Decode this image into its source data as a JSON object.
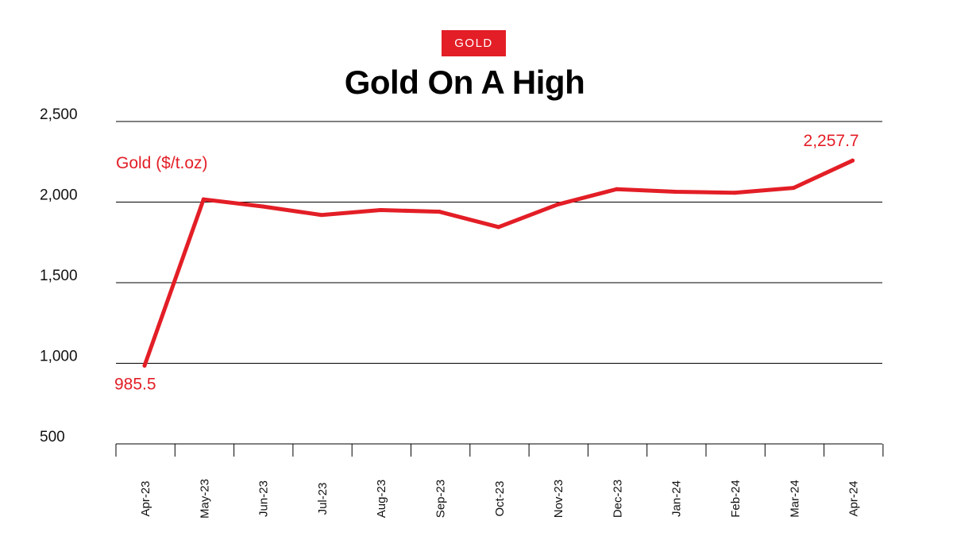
{
  "header": {
    "tag": "GOLD",
    "title": "Gold On A High"
  },
  "colors": {
    "accent": "#e31e26",
    "grid": "#000000",
    "text": "#111111"
  },
  "chart_data": {
    "type": "line",
    "title": "Gold On A High",
    "xlabel": "",
    "ylabel": "",
    "ylim": [
      500,
      2500
    ],
    "yticks": [
      500,
      1000,
      1500,
      2000,
      2500
    ],
    "ytick_labels": [
      "500",
      "1,000",
      "1,500",
      "2,000",
      "2,500"
    ],
    "grid": true,
    "categories": [
      "Apr-23",
      "May-23",
      "Jun-23",
      "Jul-23",
      "Aug-23",
      "Sep-23",
      "Oct-23",
      "Nov-23",
      "Dec-23",
      "Jan-24",
      "Feb-24",
      "Mar-24",
      "Apr-24"
    ],
    "series": [
      {
        "name": "Gold ($/t.oz)",
        "color": "#e31e26",
        "values": [
          985.5,
          2017,
          1973,
          1920,
          1951,
          1940,
          1845,
          1985,
          2080,
          2064,
          2058,
          2088,
          2257.7
        ]
      }
    ],
    "annotations": [
      {
        "category": "Apr-23",
        "text": "985.5"
      },
      {
        "category": "Apr-24",
        "text": "2,257.7"
      }
    ]
  }
}
